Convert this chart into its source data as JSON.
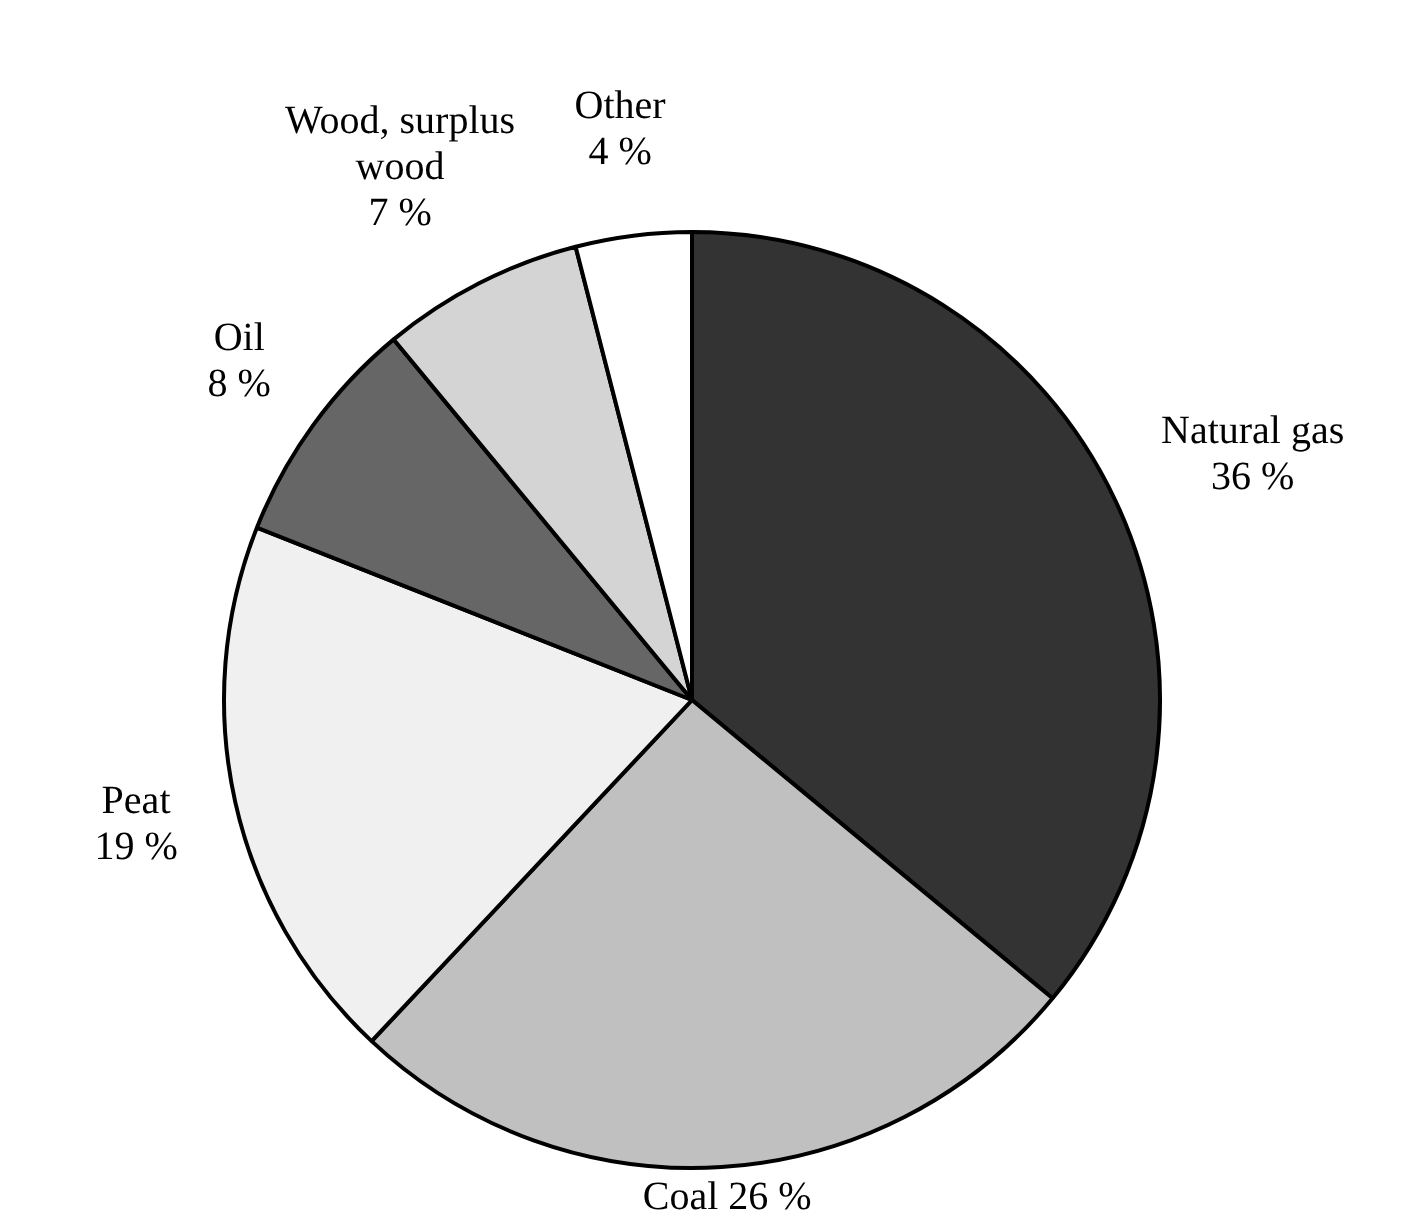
{
  "chart_data": {
    "type": "pie",
    "categories": [
      "Natural gas",
      "Coal",
      "Peat",
      "Oil",
      "Wood, surplus wood",
      "Other"
    ],
    "values": [
      36,
      26,
      19,
      8,
      7,
      4
    ],
    "colors": [
      "#333333",
      "#c0c0c0",
      "#f0f0f0",
      "#666666",
      "#d4d4d4",
      "#ffffff"
    ],
    "value_labels": [
      "36 %",
      "26 %",
      "19 %",
      "8 %",
      "7 %",
      "4 %"
    ],
    "legend": false
  }
}
